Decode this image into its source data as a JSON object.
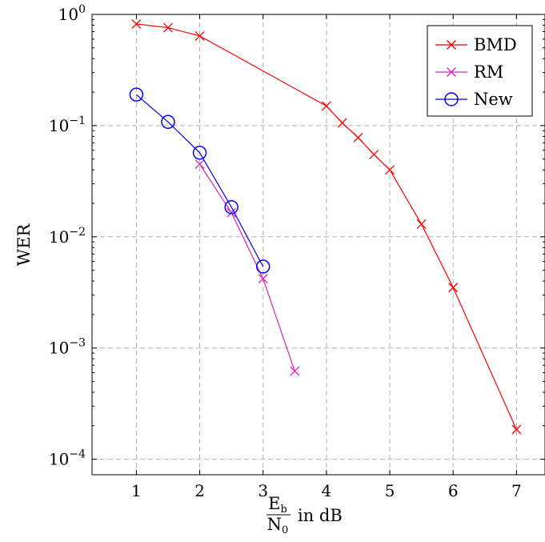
{
  "chart_data": {
    "type": "line",
    "title": "",
    "xlabel": {
      "numerator": "E",
      "numerator_sub": "b",
      "denominator": "N",
      "denominator_sub": "0",
      "suffix": "in dB"
    },
    "ylabel": "WER",
    "xlim": [
      0.3,
      7.45
    ],
    "ylim": [
      7.25e-05,
      1
    ],
    "yscale": "log",
    "grid": true,
    "legend_position": "top-right",
    "x_ticks": [
      "1",
      "2",
      "3",
      "4",
      "5",
      "6",
      "7"
    ],
    "y_ticks": [
      {
        "base": "10",
        "exp": "0"
      },
      {
        "base": "10",
        "exp": "−1"
      },
      {
        "base": "10",
        "exp": "−2"
      },
      {
        "base": "10",
        "exp": "−3"
      },
      {
        "base": "10",
        "exp": "−4"
      }
    ],
    "series": [
      {
        "name": "BMD",
        "color": "#ff0000",
        "marker": "x",
        "x": [
          1,
          1.5,
          2,
          4,
          4.25,
          4.5,
          4.75,
          5,
          5.5,
          6,
          7
        ],
        "y": [
          0.82,
          0.76,
          0.64,
          0.15,
          0.106,
          0.078,
          0.055,
          0.04,
          0.013,
          0.0035,
          0.000185
        ]
      },
      {
        "name": "RM",
        "color": "#e020c0",
        "marker": "x",
        "x": [
          2,
          2.5,
          3,
          3.5
        ],
        "y": [
          0.045,
          0.0165,
          0.0042,
          0.00062
        ]
      },
      {
        "name": "New",
        "color": "#0000ff",
        "marker": "o",
        "x": [
          1,
          1.5,
          2,
          2.5,
          3
        ],
        "y": [
          0.19,
          0.108,
          0.057,
          0.0185,
          0.0054
        ]
      }
    ]
  }
}
